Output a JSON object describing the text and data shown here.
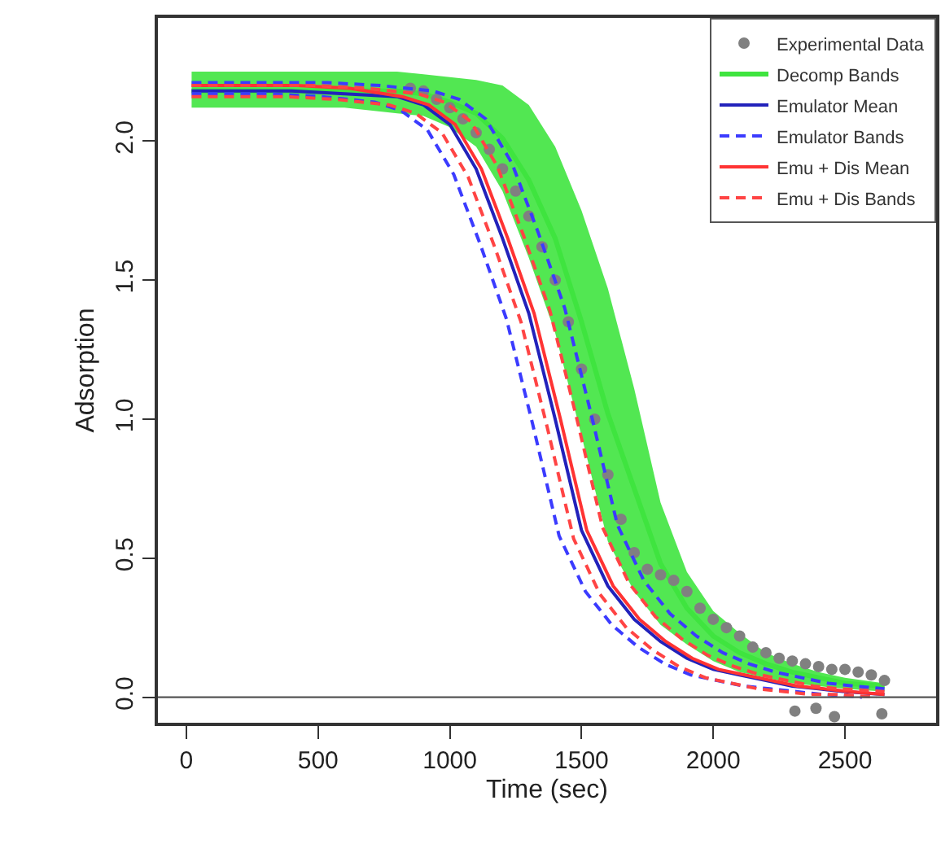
{
  "chart_data": {
    "type": "line",
    "xlabel": "Time (sec)",
    "ylabel": "Adsorption",
    "xlim": [
      -108,
      2846
    ],
    "ylim": [
      -0.092,
      2.443
    ],
    "xticks": [
      0,
      500,
      1000,
      1500,
      2000,
      2500
    ],
    "yticks": [
      {
        "value": 0,
        "label": "0.0"
      },
      0.5,
      {
        "value": 1,
        "label": "1.0"
      },
      1.5,
      {
        "value": 2,
        "label": "2.0"
      }
    ],
    "legend": "top right",
    "ref_lines": [
      {
        "axis": "y",
        "value": 0,
        "color": "#555555",
        "line_style": "solid"
      }
    ],
    "series": [
      {
        "name": "Experimental Data",
        "type": "scatter",
        "marker": "circle",
        "color": "#808080",
        "x": [
          850,
          900,
          950,
          1000,
          1050,
          1100,
          1150,
          1200,
          1250,
          1300,
          1350,
          1400,
          1450,
          1500,
          1550,
          1600,
          1650,
          1700,
          1750,
          1800,
          1850,
          1900,
          1950,
          2000,
          2050,
          2100,
          2150,
          2200,
          2250,
          2300,
          2350,
          2400,
          2450,
          2500,
          2550,
          2600,
          2650,
          2310,
          2390,
          2460,
          2640
        ],
        "values": [
          2.19,
          2.18,
          2.15,
          2.12,
          2.08,
          2.03,
          1.97,
          1.9,
          1.82,
          1.73,
          1.62,
          1.5,
          1.35,
          1.18,
          1.0,
          0.8,
          0.64,
          0.52,
          0.46,
          0.44,
          0.42,
          0.38,
          0.32,
          0.28,
          0.25,
          0.22,
          0.18,
          0.16,
          0.14,
          0.13,
          0.12,
          0.11,
          0.1,
          0.1,
          0.09,
          0.08,
          0.06,
          -0.05,
          -0.04,
          -0.07,
          -0.06
        ]
      },
      {
        "name": "Decomp Bands",
        "line_style": "solid",
        "color": "#3fe43f",
        "x": [
          20,
          200,
          400,
          600,
          800,
          900,
          1000,
          1100,
          1200,
          1300,
          1400,
          1500,
          1600,
          1700,
          1800,
          1900,
          2000,
          2100,
          2200,
          2300,
          2400,
          2500,
          2650
        ],
        "values": [
          2.18,
          2.18,
          2.18,
          2.18,
          2.18,
          2.17,
          2.14,
          2.1,
          2.01,
          1.86,
          1.65,
          1.35,
          1.02,
          0.75,
          0.48,
          0.32,
          0.22,
          0.16,
          0.12,
          0.09,
          0.07,
          0.05,
          0.04
        ],
        "lower": [
          2.12,
          2.12,
          2.12,
          2.12,
          2.1,
          2.09,
          2.05,
          1.98,
          1.82,
          1.58,
          1.31,
          0.94,
          0.56,
          0.38,
          0.26,
          0.19,
          0.13,
          0.09,
          0.07,
          0.05,
          0.04,
          0.03,
          0.02
        ],
        "upper": [
          2.25,
          2.25,
          2.25,
          2.25,
          2.25,
          2.24,
          2.23,
          2.22,
          2.2,
          2.13,
          1.98,
          1.75,
          1.47,
          1.11,
          0.7,
          0.45,
          0.31,
          0.23,
          0.16,
          0.12,
          0.09,
          0.07,
          0.05
        ]
      },
      {
        "name": "Emulator Mean",
        "line_style": "solid",
        "color": "#2222bb",
        "x": [
          20,
          200,
          400,
          600,
          800,
          900,
          1000,
          1100,
          1200,
          1300,
          1400,
          1500,
          1600,
          1700,
          1800,
          1900,
          2000,
          2100,
          2200,
          2300,
          2400,
          2500,
          2650
        ],
        "values": [
          2.18,
          2.18,
          2.18,
          2.17,
          2.16,
          2.13,
          2.06,
          1.9,
          1.65,
          1.38,
          1.0,
          0.6,
          0.4,
          0.28,
          0.2,
          0.14,
          0.1,
          0.08,
          0.06,
          0.04,
          0.03,
          0.02,
          0.01
        ]
      },
      {
        "name": "Emulator Bands",
        "line_style": "dashed",
        "color": "#3b3bff",
        "x": [
          20,
          115,
          315,
          515,
          715,
          815,
          915,
          1015,
          1115,
          1215,
          1315,
          1415,
          1515,
          1615,
          1715,
          1815,
          1915,
          2015,
          2115,
          2215,
          2315,
          2415,
          2565
        ],
        "values": [
          2.17,
          2.17,
          2.17,
          2.16,
          2.14,
          2.11,
          2.04,
          1.88,
          1.63,
          1.36,
          0.98,
          0.58,
          0.38,
          0.26,
          0.18,
          0.12,
          0.08,
          0.06,
          0.04,
          0.03,
          0.02,
          0.01,
          0.0
        ]
      },
      {
        "line_style": "dashed",
        "color": "#3b3bff",
        "x": [
          20,
          336,
          536,
          736,
          936,
          1036,
          1136,
          1236,
          1336,
          1436,
          1536,
          1636,
          1736,
          1836,
          1936,
          2036,
          2136,
          2236,
          2336,
          2436,
          2536,
          2650
        ],
        "values": [
          2.21,
          2.21,
          2.21,
          2.2,
          2.18,
          2.15,
          2.08,
          1.92,
          1.67,
          1.4,
          1.02,
          0.62,
          0.42,
          0.3,
          0.22,
          0.16,
          0.12,
          0.09,
          0.07,
          0.05,
          0.04,
          0.03
        ]
      },
      {
        "name": "Emu + Dis Mean",
        "line_style": "solid",
        "color": "#ff3333",
        "x": [
          20,
          220,
          420,
          620,
          820,
          920,
          1020,
          1120,
          1220,
          1320,
          1420,
          1520,
          1620,
          1720,
          1820,
          1920,
          2020,
          2120,
          2220,
          2320,
          2420,
          2520,
          2650
        ],
        "values": [
          2.2,
          2.2,
          2.2,
          2.19,
          2.16,
          2.13,
          2.06,
          1.9,
          1.65,
          1.38,
          1.0,
          0.6,
          0.4,
          0.28,
          0.2,
          0.14,
          0.1,
          0.08,
          0.06,
          0.04,
          0.03,
          0.02,
          0.01
        ]
      },
      {
        "name": "Emu + Dis Bands",
        "line_style": "dashed",
        "color": "#ff4444",
        "x": [
          20,
          170,
          370,
          570,
          770,
          870,
          970,
          1070,
          1170,
          1270,
          1370,
          1470,
          1570,
          1670,
          1770,
          1870,
          1970,
          2070,
          2170,
          2270,
          2370,
          2470,
          2620
        ],
        "values": [
          2.16,
          2.16,
          2.16,
          2.15,
          2.13,
          2.1,
          2.03,
          1.87,
          1.62,
          1.35,
          0.97,
          0.57,
          0.37,
          0.25,
          0.17,
          0.11,
          0.07,
          0.05,
          0.03,
          0.02,
          0.01,
          0.01,
          0.0
        ]
      },
      {
        "line_style": "dashed",
        "color": "#ff4444",
        "x": [
          20,
          280,
          480,
          680,
          880,
          980,
          1080,
          1180,
          1280,
          1380,
          1480,
          1580,
          1680,
          1780,
          1880,
          1980,
          2080,
          2180,
          2280,
          2380,
          2480,
          2650
        ],
        "values": [
          2.2,
          2.2,
          2.2,
          2.19,
          2.17,
          2.14,
          2.07,
          1.91,
          1.66,
          1.39,
          1.01,
          0.61,
          0.41,
          0.29,
          0.21,
          0.15,
          0.11,
          0.08,
          0.06,
          0.04,
          0.03,
          0.02
        ]
      }
    ]
  }
}
